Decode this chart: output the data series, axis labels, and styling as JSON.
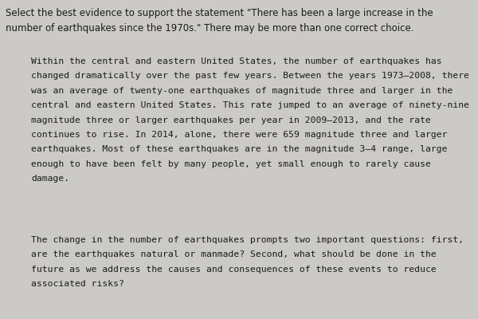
{
  "background_color": "#cccac6",
  "prompt_text": "Select the best evidence to support the statement \"There has been a large increase in the\nnumber of earthquakes since the 1970s.\" There may be more than one correct choice.",
  "para1": "Within the central and eastern United States, the number of earthquakes has\nchanged dramatically over the past few years. Between the years 1973–2008, there\nwas an average of twenty-one earthquakes of magnitude three and larger in the\ncentral and eastern United States. This rate jumped to an average of ninety-nine\nmagnitude three or larger earthquakes per year in 2009–2013, and the rate\ncontinues to rise. In 2014, alone, there were 659 magnitude three and larger\nearthquakes. Most of these earthquakes are in the magnitude 3–4 range, large\nenough to have been felt by many people, yet small enough to rarely cause\ndamage.",
  "para2": "The change in the number of earthquakes prompts two important questions: first,\nare the earthquakes natural or manmade? Second, what should be done in the\nfuture as we address the causes and consequences of these events to reduce\nassociated risks?",
  "prompt_fontsize": 8.5,
  "body_fontsize": 8.2,
  "text_color": "#1a1a1a",
  "prompt_font": "DejaVu Sans",
  "body_font": "DejaVu Sans Mono",
  "fig_width": 6.0,
  "fig_height": 4.0,
  "dpi": 100
}
